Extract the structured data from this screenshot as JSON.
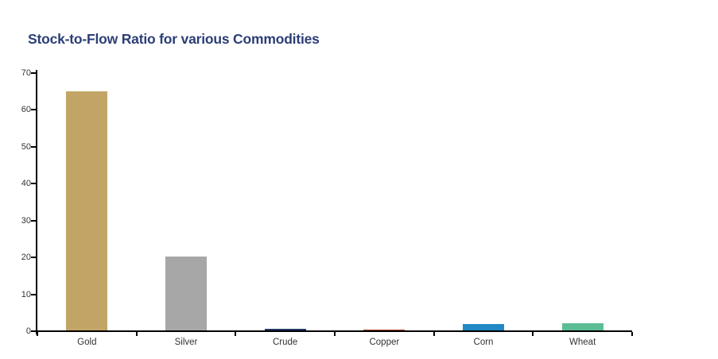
{
  "chart_data": {
    "type": "bar",
    "title": "Stock-to-Flow Ratio for various Commodities",
    "categories": [
      "Gold",
      "Silver",
      "Crude",
      "Copper",
      "Corn",
      "Wheat"
    ],
    "values": [
      65,
      20.3,
      0.7,
      0.5,
      1.9,
      2.2
    ],
    "bar_colors": [
      "#C2A566",
      "#A7A7A7",
      "#1F3864",
      "#A33B22",
      "#2189C4",
      "#5CBD94"
    ],
    "xlabel": "",
    "ylabel": "",
    "ylim": [
      0,
      70
    ],
    "ytick_step": 10,
    "ytick_labels": [
      "0",
      "10",
      "20",
      "30",
      "40",
      "50",
      "60",
      "70"
    ],
    "grid": false,
    "legend": false,
    "title_color": "#2C3E76",
    "axis_color": "#000000",
    "tick_label_color": "#333333",
    "background_color": "#FFFFFF"
  }
}
